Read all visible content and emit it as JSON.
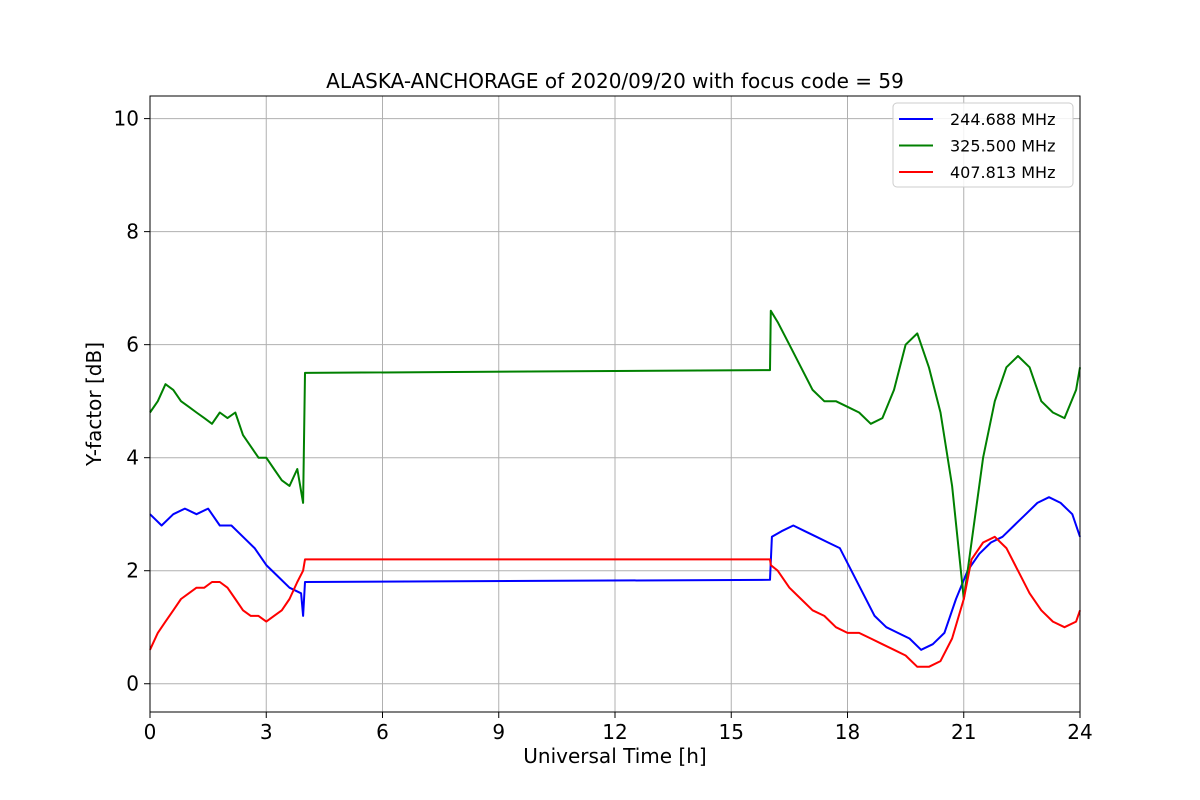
{
  "chart_data": {
    "type": "line",
    "title": "ALASKA-ANCHORAGE of 2020/09/20 with focus code = 59",
    "xlabel": "Universal Time [h]",
    "ylabel": "Y-factor [dB]",
    "xlim": [
      0,
      24
    ],
    "ylim": [
      -0.5,
      10.4
    ],
    "xticks": [
      0,
      3,
      6,
      9,
      12,
      15,
      18,
      21,
      24
    ],
    "xtick_labels": [
      "0",
      "3",
      "6",
      "9",
      "12",
      "15",
      "18",
      "21",
      "24"
    ],
    "yticks": [
      0,
      2,
      4,
      6,
      8,
      10
    ],
    "ytick_labels": [
      "0",
      "2",
      "4",
      "6",
      "8",
      "10"
    ],
    "grid": true,
    "legend_position": "top-right",
    "series": [
      {
        "name": "244.688 MHz",
        "color": "#0000ff",
        "x": [
          0.0,
          0.3,
          0.6,
          0.9,
          1.2,
          1.5,
          1.8,
          2.1,
          2.4,
          2.7,
          3.0,
          3.3,
          3.6,
          3.9,
          3.95,
          4.0,
          16.0,
          16.05,
          16.3,
          16.6,
          16.9,
          17.2,
          17.5,
          17.8,
          18.1,
          18.4,
          18.7,
          19.0,
          19.3,
          19.6,
          19.9,
          20.2,
          20.5,
          20.8,
          21.1,
          21.4,
          21.7,
          22.0,
          22.3,
          22.6,
          22.9,
          23.2,
          23.5,
          23.8,
          24.0
        ],
        "y": [
          3.0,
          2.8,
          3.0,
          3.1,
          3.0,
          3.1,
          2.8,
          2.8,
          2.6,
          2.4,
          2.1,
          1.9,
          1.7,
          1.6,
          1.2,
          1.8,
          1.84,
          2.6,
          2.7,
          2.8,
          2.7,
          2.6,
          2.5,
          2.4,
          2.0,
          1.6,
          1.2,
          1.0,
          0.9,
          0.8,
          0.6,
          0.7,
          0.9,
          1.5,
          2.0,
          2.3,
          2.5,
          2.6,
          2.8,
          3.0,
          3.2,
          3.3,
          3.2,
          3.0,
          2.6
        ]
      },
      {
        "name": "325.500 MHz",
        "color": "#008000",
        "x": [
          0.0,
          0.2,
          0.4,
          0.6,
          0.8,
          1.0,
          1.2,
          1.4,
          1.6,
          1.8,
          2.0,
          2.2,
          2.4,
          2.6,
          2.8,
          3.0,
          3.2,
          3.4,
          3.6,
          3.8,
          3.95,
          4.0,
          16.0,
          16.02,
          16.2,
          16.5,
          16.8,
          17.1,
          17.4,
          17.7,
          18.0,
          18.3,
          18.6,
          18.9,
          19.2,
          19.5,
          19.8,
          20.1,
          20.4,
          20.7,
          21.0,
          21.2,
          21.5,
          21.8,
          22.1,
          22.4,
          22.7,
          23.0,
          23.3,
          23.6,
          23.9,
          24.0
        ],
        "y": [
          4.8,
          5.0,
          5.3,
          5.2,
          5.0,
          4.9,
          4.8,
          4.7,
          4.6,
          4.8,
          4.7,
          4.8,
          4.4,
          4.2,
          4.0,
          4.0,
          3.8,
          3.6,
          3.5,
          3.8,
          3.2,
          5.5,
          5.55,
          6.6,
          6.4,
          6.0,
          5.6,
          5.2,
          5.0,
          5.0,
          4.9,
          4.8,
          4.6,
          4.7,
          5.2,
          6.0,
          6.2,
          5.6,
          4.8,
          3.5,
          1.5,
          2.5,
          4.0,
          5.0,
          5.6,
          5.8,
          5.6,
          5.0,
          4.8,
          4.7,
          5.2,
          5.6
        ]
      },
      {
        "name": "407.813 MHz",
        "color": "#ff0000",
        "x": [
          0.0,
          0.2,
          0.4,
          0.6,
          0.8,
          1.0,
          1.2,
          1.4,
          1.6,
          1.8,
          2.0,
          2.2,
          2.4,
          2.6,
          2.8,
          3.0,
          3.2,
          3.4,
          3.6,
          3.8,
          3.95,
          4.0,
          16.0,
          16.02,
          16.2,
          16.5,
          16.8,
          17.1,
          17.4,
          17.7,
          18.0,
          18.3,
          18.6,
          18.9,
          19.2,
          19.5,
          19.8,
          20.1,
          20.4,
          20.7,
          21.0,
          21.2,
          21.5,
          21.8,
          22.1,
          22.4,
          22.7,
          23.0,
          23.3,
          23.6,
          23.9,
          24.0
        ],
        "y": [
          0.6,
          0.9,
          1.1,
          1.3,
          1.5,
          1.6,
          1.7,
          1.7,
          1.8,
          1.8,
          1.7,
          1.5,
          1.3,
          1.2,
          1.2,
          1.1,
          1.2,
          1.3,
          1.5,
          1.8,
          2.0,
          2.2,
          2.2,
          2.1,
          2.0,
          1.7,
          1.5,
          1.3,
          1.2,
          1.0,
          0.9,
          0.9,
          0.8,
          0.7,
          0.6,
          0.5,
          0.3,
          0.3,
          0.4,
          0.8,
          1.5,
          2.2,
          2.5,
          2.6,
          2.4,
          2.0,
          1.6,
          1.3,
          1.1,
          1.0,
          1.1,
          1.3
        ]
      }
    ]
  }
}
